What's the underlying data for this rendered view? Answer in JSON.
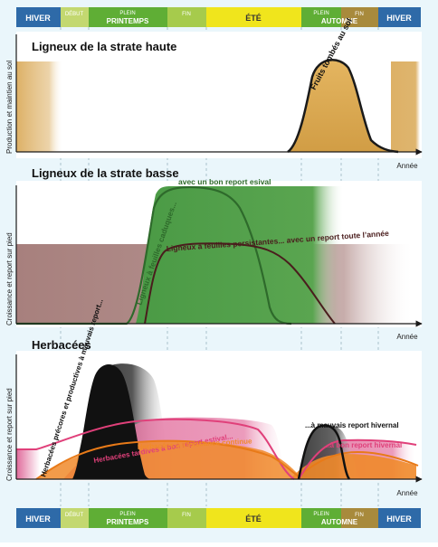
{
  "seasons": {
    "hiver": "HIVER",
    "debut": "DÉBUT",
    "plein": "PLEIN",
    "printemps": "PRINTEMPS",
    "fin": "FIN",
    "ete": "ÉTÉ",
    "automne": "AUTOMNE",
    "hiver_end": "HIVER"
  },
  "colors": {
    "hiver": "#2e6aa8",
    "debut": "#c3d870",
    "printemps": "#5fae35",
    "fin_printemps": "#a6cb4c",
    "ete": "#f0e51c",
    "automne": "#5fae35",
    "fin_automne": "#a88a3c",
    "tan": "#d9a855",
    "green": "#4a9a45",
    "mauve": "#ab8a89",
    "orange": "#f08a2a",
    "pink": "#e05a8a",
    "black": "#1a1a1a"
  },
  "panel1": {
    "title": "Ligneux de la strate haute",
    "ylabel": "Production et maintien au sol",
    "xlabel": "Année",
    "curve_label": "Fruits tombés au sol"
  },
  "panel2": {
    "title": "Ligneux de la strate basse",
    "ylabel": "Croissance et report sur pied",
    "xlabel": "Année",
    "label_caduques": "Ligneux à feuilles caduques...",
    "label_caduques_cont": "avec un bon report esival",
    "label_persistantes": "Ligneux à feuilles persistantes... avec un report toute l’année"
  },
  "panel3": {
    "title": "Herbacées",
    "ylabel": "Croissance et report sur pied",
    "xlabel": "Année",
    "label_precoces": "Herbacées précores et productives à mauvais report...",
    "label_tardives": "Herbacées tardives à bon report estival...",
    "label_continue": "Herbacées à croissance continue",
    "label_hivernal_bad": "...à mauvais report hivernal",
    "label_hivernal_good": "...à bon report hivernal"
  }
}
